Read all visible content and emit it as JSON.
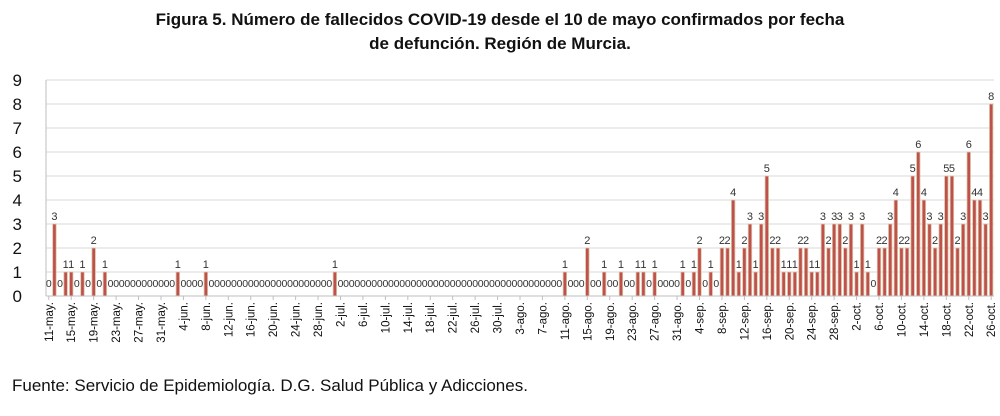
{
  "chart_data": {
    "type": "bar",
    "title_line1": "Figura 5. Número de fallecidos COVID-19 desde el 10 de mayo confirmados por fecha",
    "title_line2": "de defunción. Región de Murcia.",
    "xlabel": "",
    "ylabel": "",
    "ylim": [
      0,
      9
    ],
    "y_ticks": [
      "0",
      "1",
      "2",
      "3",
      "4",
      "5",
      "6",
      "7",
      "8",
      "9"
    ],
    "grid": true,
    "legend": "none",
    "tick_every": 4,
    "x_tick_labels": [
      "11-may.",
      "15-may.",
      "19-may.",
      "23-may.",
      "27-may.",
      "31-may.",
      "4-jun.",
      "8-jun.",
      "12-jun.",
      "16-jun.",
      "20-jun.",
      "24-jun.",
      "28-jun.",
      "2-jul.",
      "6-jul.",
      "10-jul.",
      "14-jul.",
      "18-jul.",
      "22-jul.",
      "26-jul.",
      "30-jul.",
      "3-ago.",
      "7-ago.",
      "11-ago.",
      "15-ago.",
      "19-ago.",
      "23-ago.",
      "27-ago.",
      "31-ago.",
      "4-sep.",
      "8-sep.",
      "12-sep.",
      "16-sep.",
      "20-sep.",
      "24-sep.",
      "28-sep.",
      "2-oct.",
      "6-oct.",
      "10-oct.",
      "14-oct.",
      "18-oct.",
      "22-oct.",
      "26-oct."
    ],
    "values": [
      0,
      3,
      0,
      1,
      1,
      0,
      1,
      0,
      2,
      0,
      1,
      0,
      0,
      0,
      0,
      0,
      0,
      0,
      0,
      0,
      0,
      0,
      0,
      1,
      0,
      0,
      0,
      0,
      1,
      0,
      0,
      0,
      0,
      0,
      0,
      0,
      0,
      0,
      0,
      0,
      0,
      0,
      0,
      0,
      0,
      0,
      0,
      0,
      0,
      0,
      0,
      1,
      0,
      0,
      0,
      0,
      0,
      0,
      0,
      0,
      0,
      0,
      0,
      0,
      0,
      0,
      0,
      0,
      0,
      0,
      0,
      0,
      0,
      0,
      0,
      0,
      0,
      0,
      0,
      0,
      0,
      0,
      0,
      0,
      0,
      0,
      0,
      0,
      0,
      0,
      0,
      0,
      1,
      0,
      0,
      0,
      2,
      0,
      0,
      1,
      0,
      0,
      1,
      0,
      0,
      1,
      1,
      0,
      1,
      0,
      0,
      0,
      0,
      1,
      0,
      1,
      2,
      0,
      1,
      0,
      2,
      2,
      4,
      1,
      2,
      3,
      1,
      3,
      5,
      2,
      2,
      1,
      1,
      1,
      2,
      2,
      1,
      1,
      3,
      2,
      3,
      3,
      2,
      3,
      1,
      3,
      1,
      0,
      2,
      2,
      3,
      4,
      2,
      2,
      5,
      6,
      4,
      3,
      2,
      3,
      5,
      5,
      2,
      3,
      6,
      4,
      4,
      3,
      8
    ],
    "bar_color": "#c0504d",
    "bar_edge_color": "#d9c6a5"
  },
  "source": "Fuente: Servicio de Epidemiología. D.G. Salud Pública y Adicciones."
}
